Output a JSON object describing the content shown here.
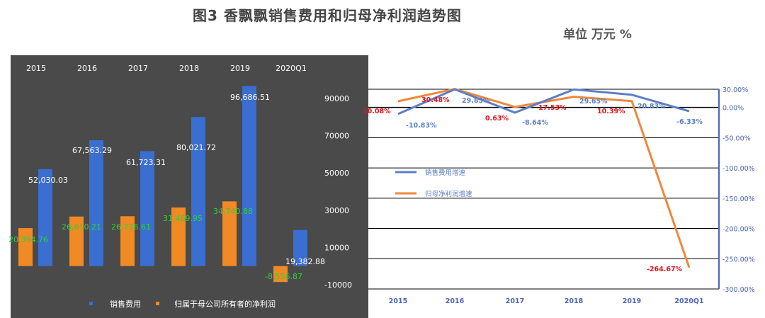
{
  "header": {
    "title": "图3 香飘飘销售费用和归母净利润趋势图",
    "unit": "单位 万元 %"
  },
  "colors": {
    "panel_bg": "#4a4a4a",
    "bar_blue": "#3a6ed0",
    "bar_orange": "#f08a24",
    "line_blue": "#5b7fc6",
    "line_orange": "#f0873a",
    "label_green": "#2fcf3e",
    "label_red": "#e0141b",
    "label_white": "#ffffff",
    "axis_blue": "#4a64b8"
  },
  "chart_data": [
    {
      "type": "bar",
      "categories": [
        "2015",
        "2016",
        "2017",
        "2018",
        "2019",
        "2020Q1"
      ],
      "series": [
        {
          "name": "销售费用",
          "values": [
            52030.03,
            67563.29,
            61723.31,
            80021.72,
            96686.51,
            19382.88
          ],
          "labels": [
            "52,030.03",
            "67,563.29",
            "61,723.31",
            "80,021.72",
            "96,686.51",
            "19,382.88"
          ]
        },
        {
          "name": "归属于母公司所有者的净利润",
          "values": [
            20394.76,
            26610.21,
            26776.61,
            31469.95,
            34740.88,
            -8556.87
          ],
          "labels": [
            "20,394.76",
            "26,610.21",
            "26,776.61",
            "31,469.95",
            "34,740.88",
            "-8,556.87"
          ]
        }
      ],
      "y_ticks": [
        {
          "value": 90000,
          "label": "90000"
        },
        {
          "value": 70000,
          "label": "70000"
        },
        {
          "value": 50000,
          "label": "50000"
        },
        {
          "value": 30000,
          "label": "30000"
        },
        {
          "value": 10000,
          "label": "10000"
        },
        {
          "value": -10000,
          "label": "-10000"
        }
      ],
      "ylim": [
        -10000,
        100000
      ],
      "legend_position": "bottom",
      "grid": false
    },
    {
      "type": "line",
      "categories": [
        "2015",
        "2016",
        "2017",
        "2018",
        "2019",
        "2020Q1"
      ],
      "series": [
        {
          "name": "销售费用增速",
          "values": [
            -10.83,
            29.85,
            -8.64,
            29.65,
            20.83,
            -6.33
          ],
          "labels": [
            "-10.83%",
            "29.85%",
            "-8.64%",
            "29.65%",
            "20.83%",
            "-6.33%"
          ]
        },
        {
          "name": "归母净利润增速",
          "values": [
            10.08,
            30.48,
            0.63,
            17.53,
            10.39,
            -264.67
          ],
          "labels": [
            "10.08%",
            "30.48%",
            "0.63%",
            "17.53%",
            "10.39%",
            "-264.67%"
          ]
        }
      ],
      "y_ticks": [
        {
          "value": 30,
          "label": "30.00%"
        },
        {
          "value": 0,
          "label": "0.00%"
        },
        {
          "value": -50,
          "label": "-50.00%"
        },
        {
          "value": -100,
          "label": "-100.00%"
        },
        {
          "value": -150,
          "label": "-150.00%"
        },
        {
          "value": -200,
          "label": "-200.00%"
        },
        {
          "value": -250,
          "label": "-250.00%"
        },
        {
          "value": -300,
          "label": "-300.00%"
        }
      ],
      "ylim": [
        -300,
        30
      ],
      "y_axis_position": "right",
      "legend_position": "left-middle",
      "grid": true
    }
  ]
}
